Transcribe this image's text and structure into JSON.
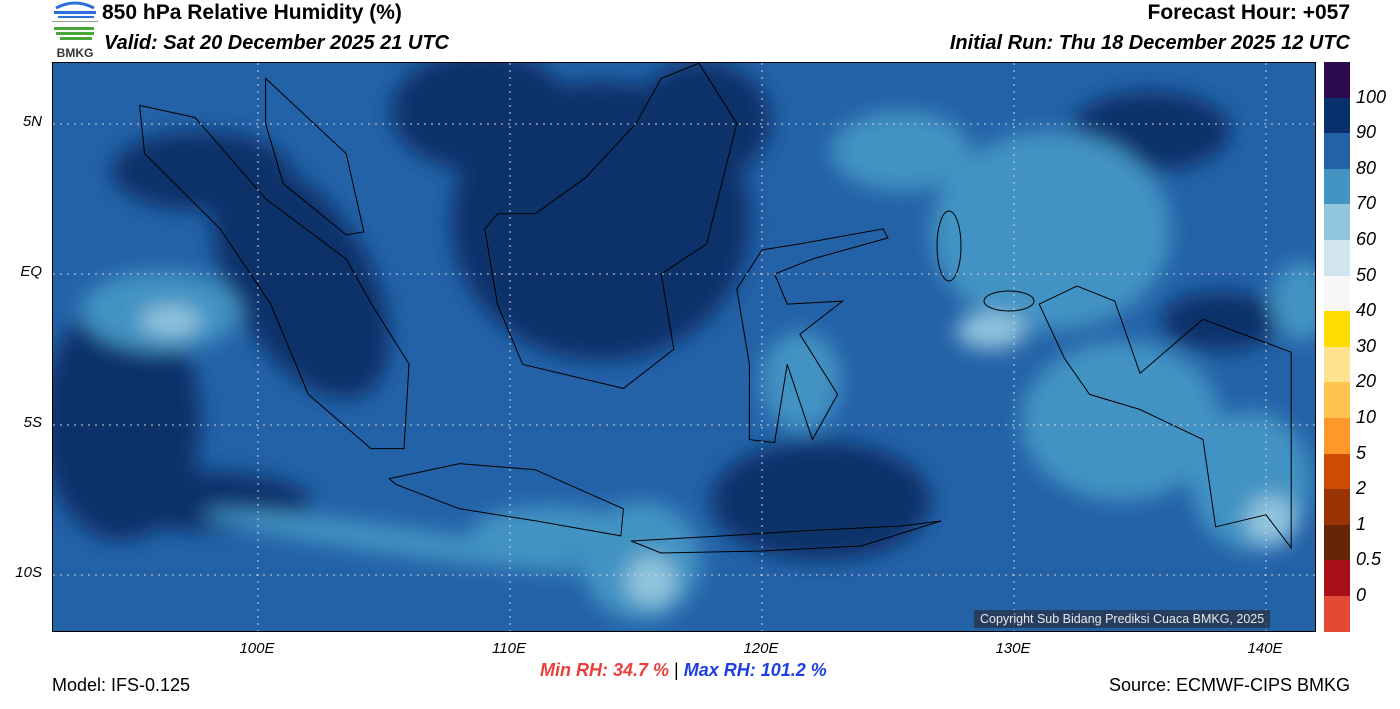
{
  "header": {
    "title": "850 hPa Relative Humidity (%)",
    "valid": "Valid: Sat 20 December 2025 21 UTC",
    "forecast_hour": "Forecast Hour: +057",
    "initial_run": "Initial Run: Thu 18 December 2025 12 UTC"
  },
  "logo": {
    "text": "BMKG"
  },
  "map": {
    "lat_labels": [
      "5N",
      "EQ",
      "5S",
      "10S"
    ],
    "lon_labels": [
      "100E",
      "110E",
      "120E",
      "130E",
      "140E"
    ],
    "copyright": "Copyright Sub Bidang Prediksi Cuaca BMKG, 2025"
  },
  "colorbar": {
    "labels": [
      "100",
      "90",
      "80",
      "70",
      "60",
      "50",
      "40",
      "30",
      "20",
      "10",
      "5",
      "2",
      "1",
      "0.5",
      "0"
    ],
    "colors": [
      "#2b0a4e",
      "#08306b",
      "#2462a8",
      "#4393c3",
      "#92c5de",
      "#d1e5f0",
      "#f7f7f7",
      "#ffdd00",
      "#fee391",
      "#fec44f",
      "#fe9929",
      "#cc4c02",
      "#993404",
      "#662506",
      "#a50f15",
      "#e34a33"
    ]
  },
  "footer": {
    "model": "Model: IFS-0.125",
    "source": "Source: ECMWF-CIPS BMKG",
    "min_rh": "Min RH:  34.7 %",
    "separator": "|",
    "max_rh": "Max RH: 101.2 %",
    "min_color": "#e8413c",
    "max_color": "#1f3fe0"
  }
}
